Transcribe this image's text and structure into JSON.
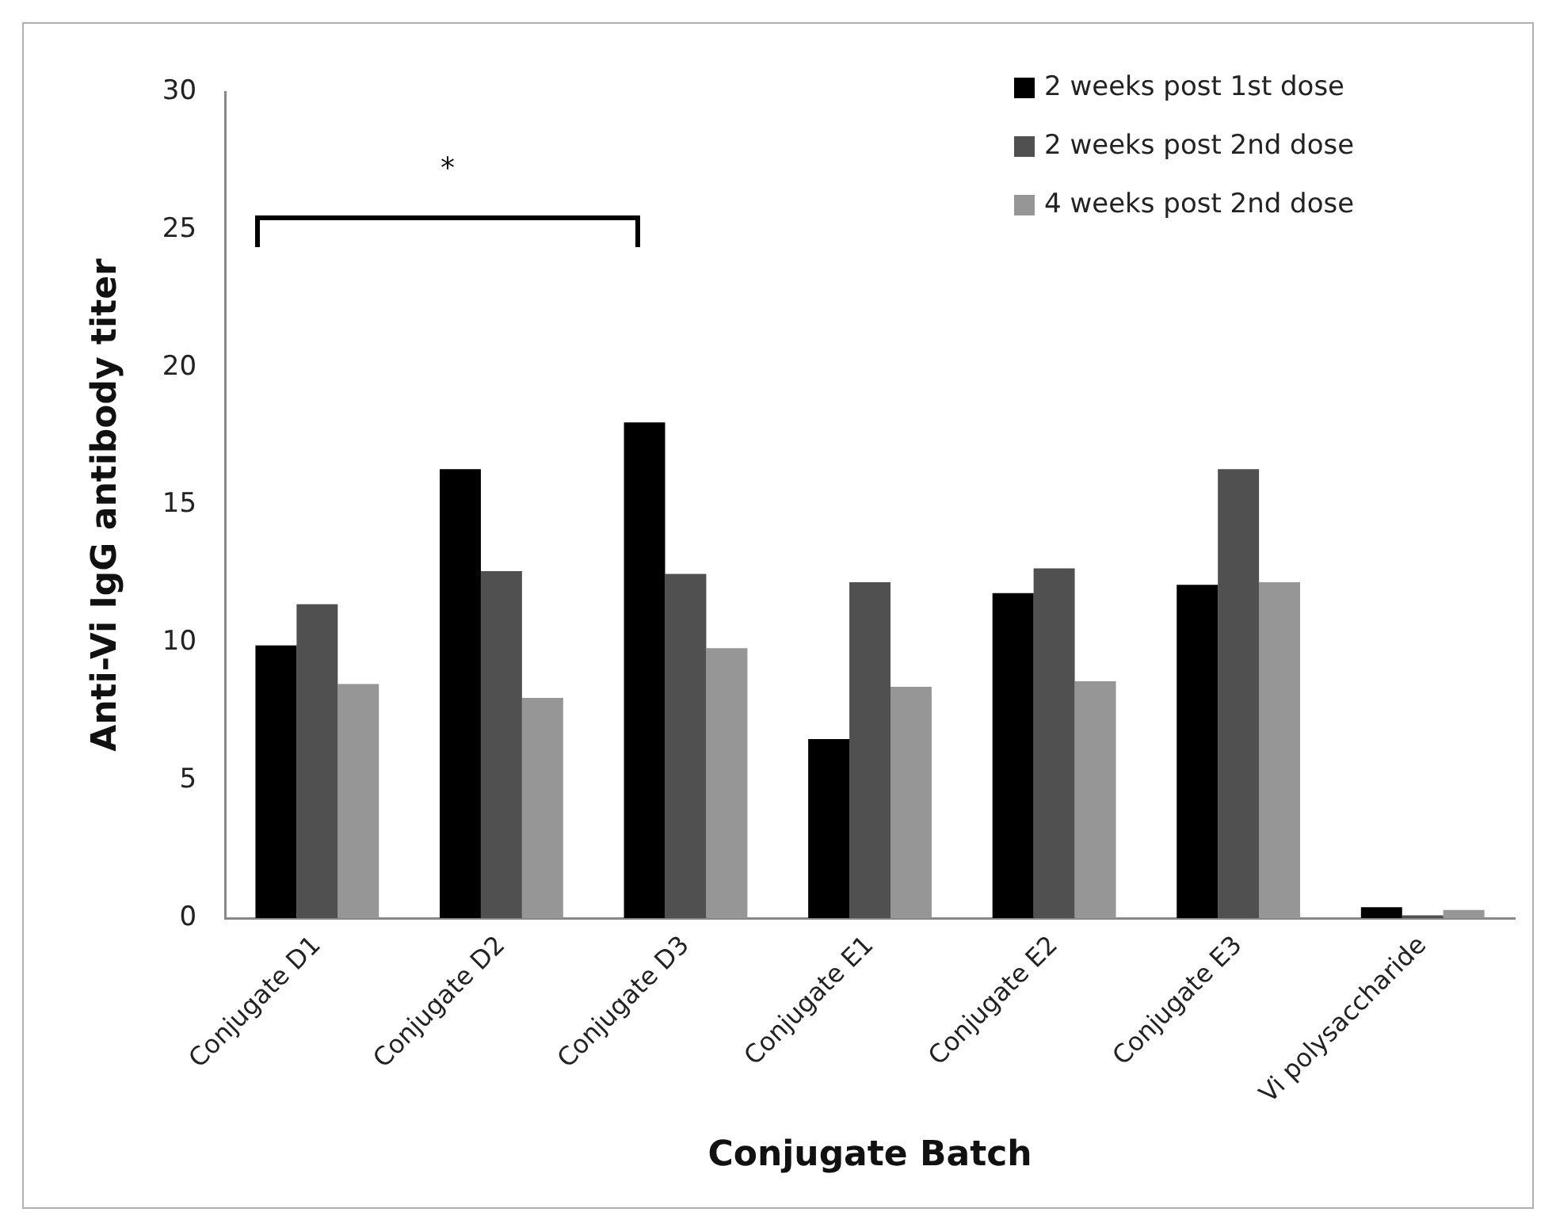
{
  "chart_data": {
    "type": "bar",
    "xlabel": "Conjugate Batch",
    "ylabel": "Anti-Vi IgG antibody titer",
    "categories": [
      "Conjugate D1",
      "Conjugate D2",
      "Conjugate D3",
      "Conjugate E1",
      "Conjugate E2",
      "Conjugate E3",
      "Vi polysaccharide"
    ],
    "series": [
      {
        "name": "2 weeks post 1st dose",
        "color": "#000000",
        "values": [
          9.9,
          16.3,
          18.0,
          6.5,
          11.8,
          12.1,
          0.4
        ]
      },
      {
        "name": "2 weeks post 2nd dose",
        "color": "#505050",
        "values": [
          11.4,
          12.6,
          12.5,
          12.2,
          12.7,
          16.3,
          0.1
        ]
      },
      {
        "name": "4 weeks post 2nd dose",
        "color": "#969696",
        "values": [
          8.5,
          8.0,
          9.8,
          8.4,
          8.6,
          12.2,
          0.3
        ]
      }
    ],
    "ylim": [
      0,
      30
    ],
    "yticks": [
      0,
      5,
      10,
      15,
      20,
      25,
      30
    ],
    "grid": false,
    "legend": "top right",
    "annotations": [
      "*"
    ]
  }
}
